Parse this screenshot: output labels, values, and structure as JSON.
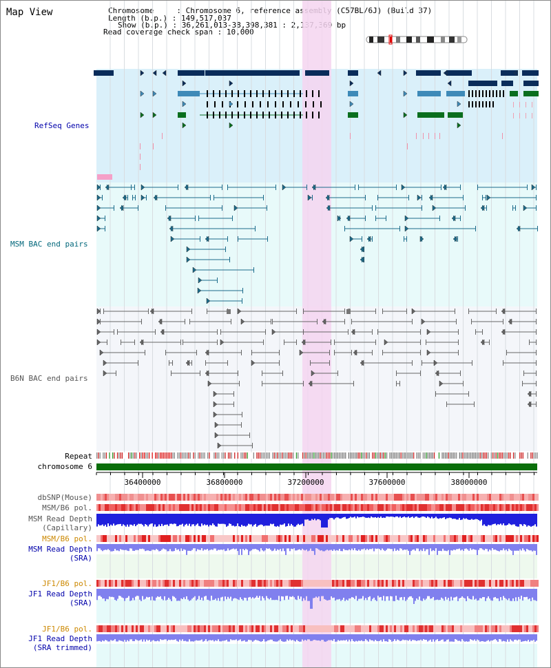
{
  "title": "Map View",
  "info": {
    "chromosome_label": "Chromosome",
    "chromosome_value": "Chromosome 6, reference assembly (C57BL/6J) (Build 37)",
    "length_label": "Length (b.p.)",
    "length_value": "149,517,037",
    "show_label": "Show (b.p.)",
    "show_value": "36,261,013-38,398,381 : 2,137,369 bp",
    "coverage_label": "Read coverage check span",
    "coverage_value": "10,000"
  },
  "tracks": {
    "refseq": "RefSeq Genes",
    "msm_bac": "MSM BAC end pairs",
    "b6n_bac": "B6N BAC end pairs",
    "repeat": "Repeat",
    "chromosome": "chromosome 6",
    "dbsnp": "dbSNP(Mouse)",
    "msm_b6_pol_1": "MSM/B6 pol.",
    "msm_read_depth_cap_1": "MSM Read Depth",
    "msm_read_depth_cap_2": "(Capillary)",
    "msm_b6_pol_2": "MSM/B6 pol.",
    "msm_read_depth_sra_1": "MSM Read Depth",
    "msm_read_depth_sra_2": "(SRA)",
    "jf1_b6_pol_1": "JF1/B6 pol.",
    "jf1_read_depth_sra_1": "JF1 Read Depth",
    "jf1_read_depth_sra_2": "(SRA)",
    "jf1_b6_pol_2": "JF1/B6 pol.",
    "jf1_read_depth_trim_1": "JF1 Read Depth",
    "jf1_read_depth_trim_2": "(SRA trimmed)"
  },
  "axis_ticks": [
    "36400000",
    "36800000",
    "37200000",
    "37600000",
    "38000000"
  ],
  "colors": {
    "refseq_bg": "#daf0fa",
    "msm_bg": "#e8fafa",
    "b6n_bg": "#f4f6fa",
    "highlight": "#f5d5f0",
    "gene_dark": "#0a2c5a",
    "gene_mid": "#3e8ab8",
    "gene_green": "#0a6e1e",
    "msm_line": "#1a6a8a",
    "b6n_line": "#666666",
    "chromosome_bar": "#0a6e0a",
    "depth_blue": "#2020dd",
    "depth_light": "#8080ee",
    "label_blue": "#0000aa",
    "label_teal": "#00667a",
    "label_orange": "#cc8800",
    "label_gray": "#555555"
  }
}
